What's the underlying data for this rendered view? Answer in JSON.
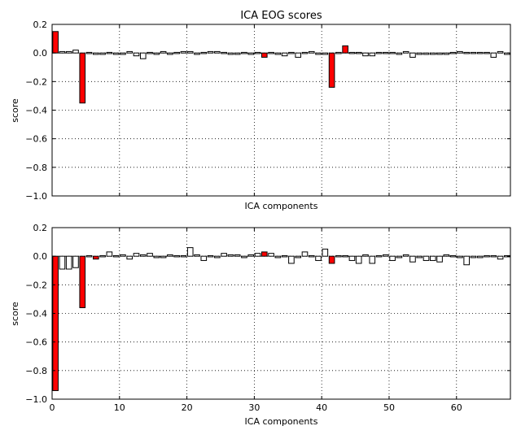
{
  "figure": {
    "title": "ICA EOG scores"
  },
  "chart_data": [
    {
      "type": "bar",
      "xlabel": "ICA components",
      "ylabel": "score",
      "xlim": [
        0,
        68
      ],
      "ylim": [
        -1.0,
        0.2
      ],
      "yticks": [
        0.2,
        0.0,
        -0.2,
        -0.4,
        -0.6,
        -0.8,
        -1.0
      ],
      "ytick_labels": [
        "0.2",
        "0.0",
        "−0.2",
        "−0.4",
        "−0.6",
        "−0.8",
        "−1.0"
      ],
      "xticks": [
        0,
        10,
        20,
        30,
        40,
        50,
        60
      ],
      "xtick_labels": [],
      "grid": true,
      "bar_width": 0.8,
      "bar_color": "#ffffff",
      "highlight_color": "#ff0000",
      "highlight_indices": [
        0,
        4,
        31,
        41,
        43
      ],
      "x": [
        0,
        1,
        2,
        3,
        4,
        5,
        6,
        7,
        8,
        9,
        10,
        11,
        12,
        13,
        14,
        15,
        16,
        17,
        18,
        19,
        20,
        21,
        22,
        23,
        24,
        25,
        26,
        27,
        28,
        29,
        30,
        31,
        32,
        33,
        34,
        35,
        36,
        37,
        38,
        39,
        40,
        41,
        42,
        43,
        44,
        45,
        46,
        47,
        48,
        49,
        50,
        51,
        52,
        53,
        54,
        55,
        56,
        57,
        58,
        59,
        60,
        61,
        62,
        63,
        64,
        65,
        66,
        67
      ],
      "values": [
        0.15,
        0.01,
        0.01,
        0.02,
        -0.35,
        0.0,
        -0.01,
        -0.01,
        0.0,
        -0.01,
        -0.01,
        0.01,
        -0.02,
        -0.04,
        0.0,
        -0.01,
        0.01,
        -0.01,
        0.0,
        0.01,
        0.01,
        -0.01,
        0.0,
        0.01,
        0.01,
        0.0,
        -0.01,
        -0.01,
        0.0,
        -0.01,
        0.0,
        -0.03,
        0.0,
        -0.01,
        -0.02,
        0.0,
        -0.03,
        0.0,
        0.01,
        -0.01,
        -0.01,
        -0.24,
        0.0,
        0.05,
        0.0,
        0.0,
        -0.02,
        -0.02,
        0.0,
        0.0,
        0.0,
        -0.01,
        0.01,
        -0.03,
        -0.01,
        -0.01,
        -0.01,
        -0.01,
        -0.01,
        0.0,
        0.01,
        0.0,
        0.0,
        0.0,
        0.0,
        -0.03,
        0.01,
        -0.01
      ]
    },
    {
      "type": "bar",
      "xlabel": "ICA components",
      "ylabel": "score",
      "xlim": [
        0,
        68
      ],
      "ylim": [
        -1.0,
        0.2
      ],
      "yticks": [
        0.2,
        0.0,
        -0.2,
        -0.4,
        -0.6,
        -0.8,
        -1.0
      ],
      "ytick_labels": [
        "0.2",
        "0.0",
        "−0.2",
        "−0.4",
        "−0.6",
        "−0.8",
        "−1.0"
      ],
      "xticks": [
        0,
        10,
        20,
        30,
        40,
        50,
        60
      ],
      "xtick_labels": [
        "0",
        "10",
        "20",
        "30",
        "40",
        "50",
        "60"
      ],
      "grid": true,
      "bar_width": 0.8,
      "bar_color": "#ffffff",
      "highlight_color": "#ff0000",
      "highlight_indices": [
        0,
        4,
        6,
        31,
        41
      ],
      "x": [
        0,
        1,
        2,
        3,
        4,
        5,
        6,
        7,
        8,
        9,
        10,
        11,
        12,
        13,
        14,
        15,
        16,
        17,
        18,
        19,
        20,
        21,
        22,
        23,
        24,
        25,
        26,
        27,
        28,
        29,
        30,
        31,
        32,
        33,
        34,
        35,
        36,
        37,
        38,
        39,
        40,
        41,
        42,
        43,
        44,
        45,
        46,
        47,
        48,
        49,
        50,
        51,
        52,
        53,
        54,
        55,
        56,
        57,
        58,
        59,
        60,
        61,
        62,
        63,
        64,
        65,
        66,
        67
      ],
      "values": [
        -0.94,
        -0.09,
        -0.09,
        -0.08,
        -0.36,
        0.0,
        -0.02,
        0.0,
        0.03,
        0.0,
        0.01,
        -0.02,
        0.02,
        0.01,
        0.02,
        -0.01,
        -0.01,
        0.01,
        0.0,
        0.0,
        0.06,
        0.01,
        -0.03,
        0.0,
        -0.01,
        0.02,
        0.01,
        0.01,
        -0.01,
        0.01,
        0.02,
        0.03,
        0.02,
        -0.01,
        0.0,
        -0.05,
        -0.01,
        0.03,
        0.0,
        -0.03,
        0.05,
        -0.05,
        0.0,
        0.0,
        -0.03,
        -0.05,
        0.01,
        -0.05,
        0.0,
        0.01,
        -0.03,
        -0.01,
        0.01,
        -0.04,
        -0.01,
        -0.03,
        -0.03,
        -0.04,
        0.01,
        0.0,
        -0.01,
        -0.06,
        -0.01,
        -0.01,
        0.0,
        0.0,
        -0.02,
        0.0
      ]
    }
  ]
}
